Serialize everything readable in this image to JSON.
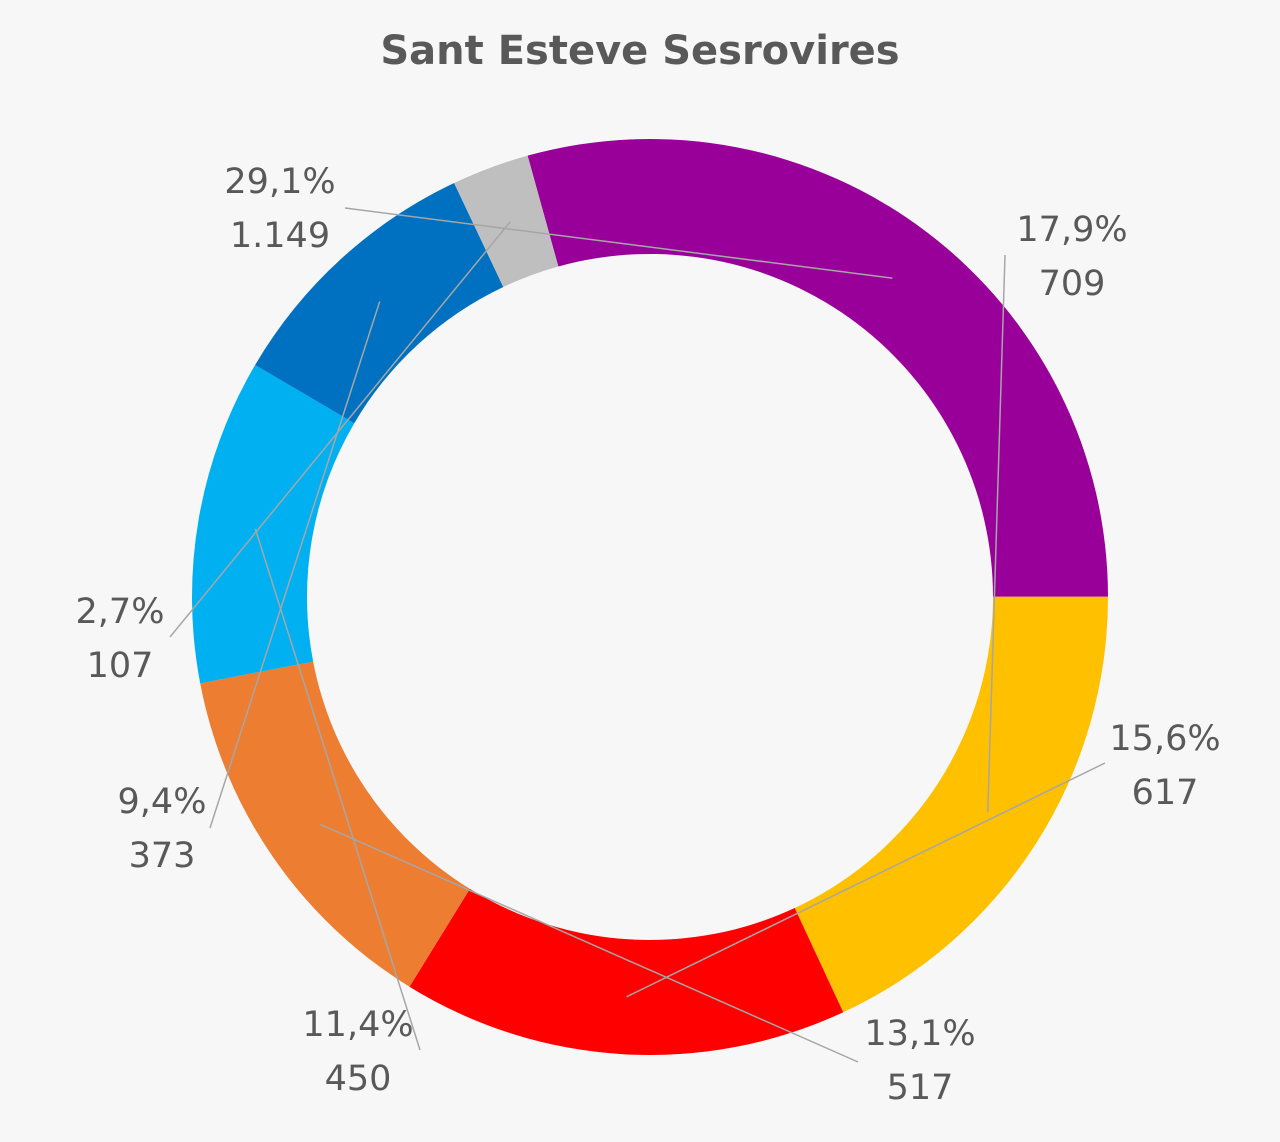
{
  "chart_data": {
    "type": "pie",
    "variant": "donut",
    "title": "Sant Esteve Sesrovires",
    "legend": "none",
    "slices": [
      {
        "value": 1149,
        "value_label": "1.149",
        "percent_label": "29,1%",
        "color": "#990099"
      },
      {
        "value": 709,
        "value_label": "709",
        "percent_label": "17,9%",
        "color": "#ffc000"
      },
      {
        "value": 617,
        "value_label": "617",
        "percent_label": "15,6%",
        "color": "#ff0000"
      },
      {
        "value": 517,
        "value_label": "517",
        "percent_label": "13,1%",
        "color": "#ed7d31"
      },
      {
        "value": 450,
        "value_label": "450",
        "percent_label": "11,4%",
        "color": "#00b0f0"
      },
      {
        "value": 373,
        "value_label": "373",
        "percent_label": "9,4%",
        "color": "#0070c0"
      },
      {
        "value": 107,
        "value_label": "107",
        "percent_label": "2,7%",
        "color": "#bfbfbf"
      }
    ]
  }
}
